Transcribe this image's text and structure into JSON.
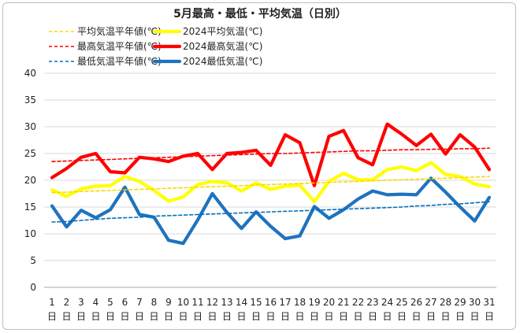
{
  "chart_data": {
    "type": "line",
    "title": "5月最高・最低・平均気温（日別）",
    "xlabel": "",
    "ylabel": "",
    "ylim": [
      0,
      40
    ],
    "yticks": [
      0,
      5,
      10,
      15,
      20,
      25,
      30,
      35,
      40
    ],
    "grid": true,
    "legend_position": "top",
    "categories": [
      "1",
      "2",
      "3",
      "4",
      "5",
      "6",
      "7",
      "8",
      "9",
      "10",
      "11",
      "12",
      "13",
      "14",
      "15",
      "16",
      "17",
      "18",
      "19",
      "20",
      "21",
      "22",
      "23",
      "24",
      "25",
      "26",
      "27",
      "28",
      "29",
      "30",
      "31"
    ],
    "day_suffix": "日",
    "series": [
      {
        "name": "平均気温平年値(℃)",
        "color": "#ffd700",
        "dashed": true,
        "values": [
          17.7,
          17.8,
          17.9,
          18.0,
          18.1,
          18.2,
          18.3,
          18.4,
          18.5,
          18.6,
          18.7,
          18.8,
          18.9,
          19.0,
          19.1,
          19.2,
          19.3,
          19.4,
          19.5,
          19.6,
          19.7,
          19.8,
          19.9,
          20.0,
          20.1,
          20.2,
          20.3,
          20.4,
          20.5,
          20.6,
          20.7
        ]
      },
      {
        "name": "2024平均気温(℃)",
        "color": "#ffff00",
        "dashed": false,
        "values": [
          18.2,
          17.0,
          18.4,
          18.9,
          19.0,
          20.7,
          19.8,
          18.1,
          16.1,
          16.9,
          19.2,
          19.8,
          19.5,
          18.0,
          19.5,
          18.3,
          18.9,
          19.1,
          16.0,
          19.8,
          21.3,
          20.1,
          20.1,
          22.0,
          22.5,
          21.8,
          23.3,
          21.1,
          20.7,
          19.3,
          18.8
        ]
      },
      {
        "name": "最高気温平年値(℃)",
        "color": "#ff0000",
        "dashed": true,
        "values": [
          23.5,
          23.6,
          23.7,
          23.8,
          23.9,
          24.0,
          24.1,
          24.2,
          24.3,
          24.4,
          24.5,
          24.6,
          24.7,
          24.8,
          24.9,
          25.0,
          25.0,
          25.1,
          25.2,
          25.3,
          25.4,
          25.5,
          25.5,
          25.6,
          25.7,
          25.7,
          25.8,
          25.8,
          25.9,
          25.9,
          26.0
        ]
      },
      {
        "name": "2024最高気温(℃)",
        "color": "#ff0000",
        "dashed": false,
        "values": [
          20.5,
          22.2,
          24.3,
          25.0,
          21.6,
          21.4,
          24.3,
          24.0,
          23.5,
          24.5,
          25.0,
          22.0,
          25.0,
          25.2,
          25.6,
          22.8,
          28.5,
          27.0,
          19.0,
          28.2,
          29.3,
          24.2,
          22.9,
          30.5,
          28.6,
          26.5,
          28.6,
          24.9,
          28.5,
          26.2,
          22.0
        ]
      },
      {
        "name": "最低気温平年値(℃)",
        "color": "#0070c0",
        "dashed": true,
        "values": [
          12.2,
          12.3,
          12.5,
          12.7,
          12.9,
          13.0,
          13.1,
          13.3,
          13.4,
          13.5,
          13.6,
          13.7,
          13.8,
          13.9,
          14.0,
          14.1,
          14.2,
          14.3,
          14.4,
          14.5,
          14.6,
          14.7,
          14.8,
          14.9,
          15.0,
          15.2,
          15.3,
          15.5,
          15.6,
          15.8,
          16.0
        ]
      },
      {
        "name": "2024最低気温(℃)",
        "color": "#1e73be",
        "dashed": false,
        "values": [
          15.2,
          11.3,
          14.4,
          13.0,
          14.5,
          18.7,
          13.6,
          13.1,
          8.8,
          8.2,
          12.6,
          17.5,
          14.0,
          11.0,
          14.1,
          11.4,
          9.1,
          9.6,
          15.1,
          12.9,
          14.5,
          16.5,
          18.0,
          17.3,
          17.4,
          17.3,
          20.4,
          17.8,
          15.0,
          12.4,
          16.8
        ]
      }
    ]
  }
}
